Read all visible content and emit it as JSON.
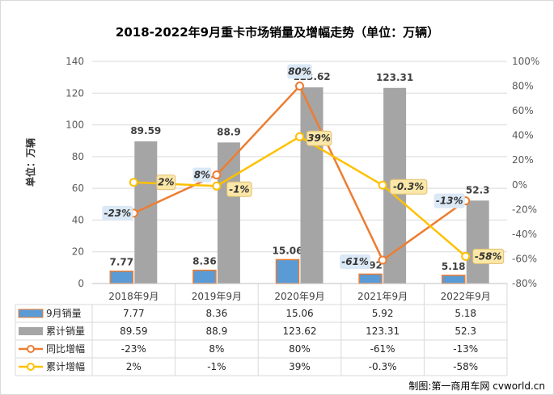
{
  "chart_data": {
    "type": "bar",
    "title": "2018-2022年9月重卡市场销量及增幅走势（单位：万辆）",
    "ylabel": "单位：万辆",
    "categories": [
      "2018年9月",
      "2019年9月",
      "2020年9月",
      "2021年9月",
      "2022年9月"
    ],
    "ylim": [
      0,
      140
    ],
    "y_ticks": [
      "0",
      "20",
      "40",
      "60",
      "80",
      "100",
      "120",
      "140"
    ],
    "y2lim": [
      -80,
      100
    ],
    "y2_ticks": [
      "-80%",
      "-60%",
      "-40%",
      "-20%",
      "0%",
      "20%",
      "40%",
      "60%",
      "80%",
      "100%"
    ],
    "bar_series": [
      {
        "name": "9月销量",
        "values": [
          7.77,
          8.36,
          15.06,
          5.92,
          5.18
        ],
        "labels": [
          "7.77",
          "8.36",
          "15.06",
          "5.92",
          "5.18"
        ],
        "color": "#5b9bd5"
      },
      {
        "name": "累计销量",
        "values": [
          89.59,
          88.9,
          123.62,
          123.31,
          52.3
        ],
        "labels": [
          "89.59",
          "88.9",
          "123.62",
          "123.31",
          "52.3"
        ],
        "color": "#a5a5a5"
      }
    ],
    "line_series": [
      {
        "name": "同比增幅",
        "values": [
          -23,
          8,
          80,
          -61,
          -13
        ],
        "labels": [
          "-23%",
          "8%",
          "80%",
          "-61%",
          "-13%"
        ],
        "color": "#ed7d31"
      },
      {
        "name": "累计增幅",
        "values": [
          2,
          -1,
          39,
          -0.3,
          -58
        ],
        "labels": [
          "2%",
          "-1%",
          "39%",
          "-0.3%",
          "-58%"
        ],
        "color": "#ffc000"
      }
    ],
    "grid": true,
    "legend": "data-table"
  },
  "watermark": "制图:第一商用车网 cvworld.cn"
}
